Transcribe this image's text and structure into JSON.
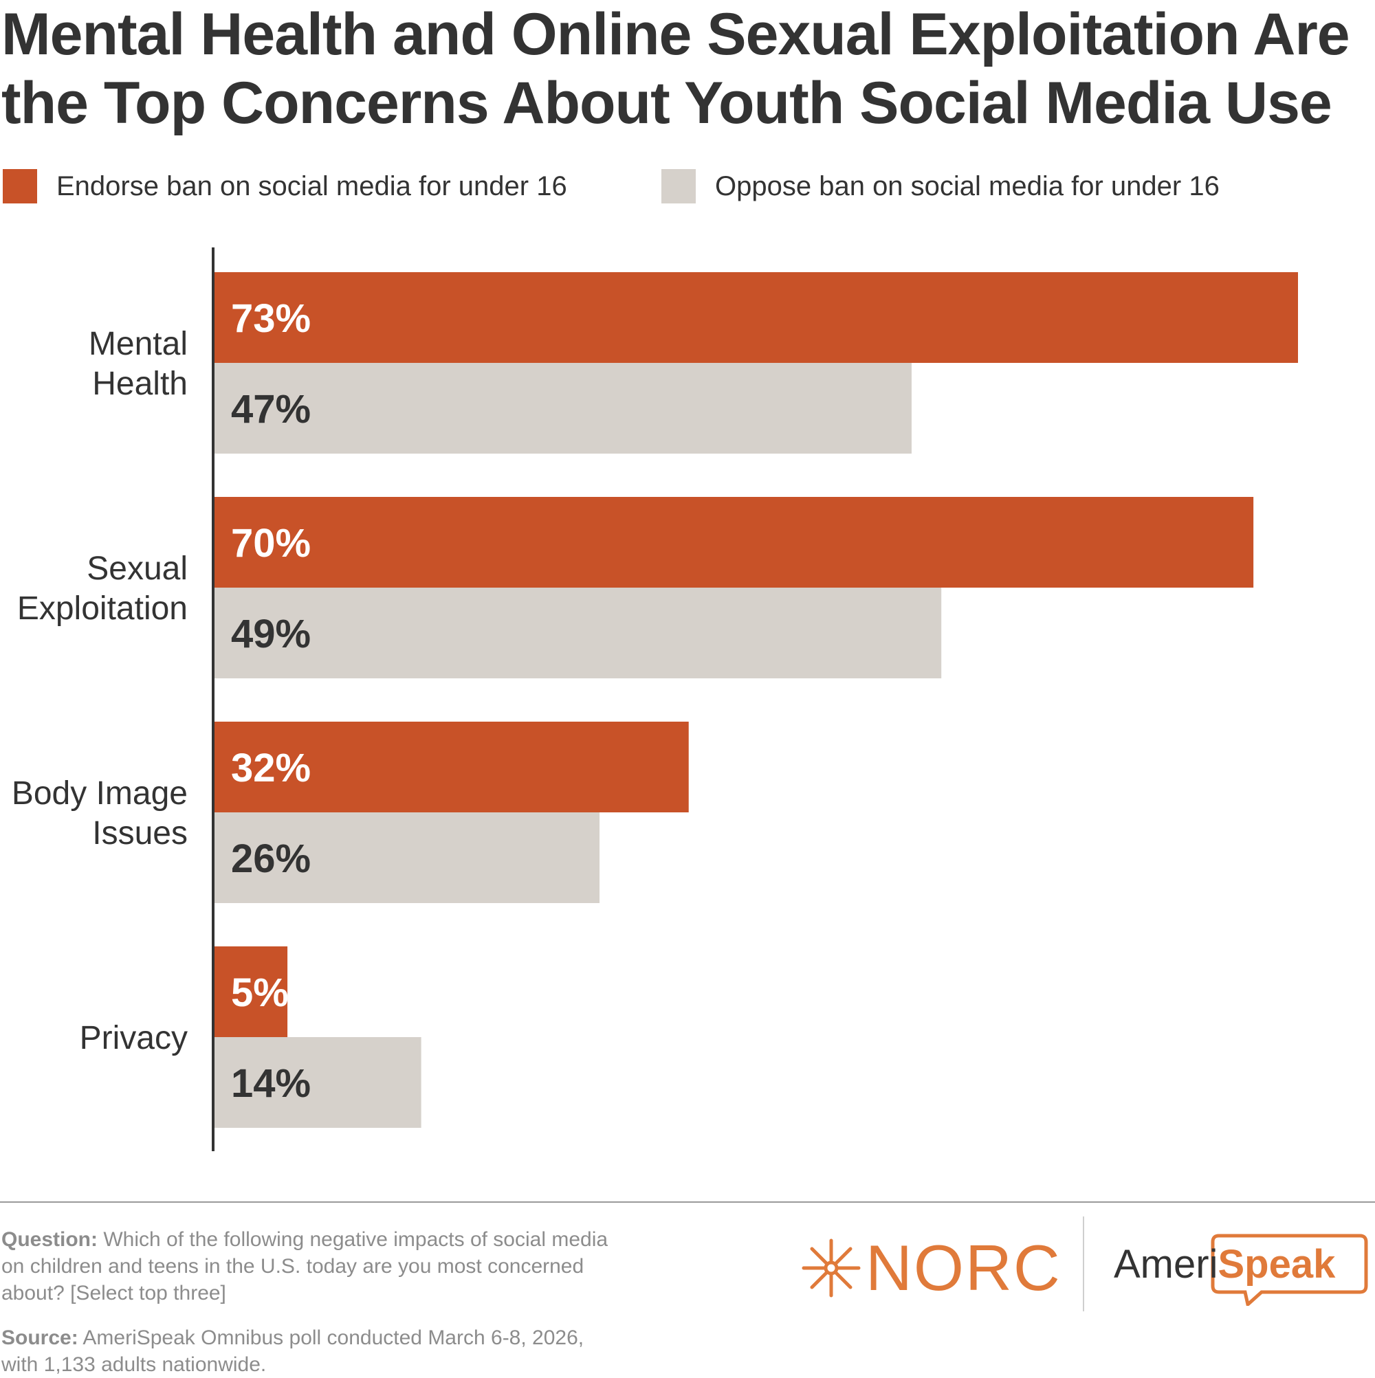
{
  "title": "Mental Health and Online Sexual Exploitation Are the Top Concerns About Youth Social Media Use",
  "colors": {
    "endorse": "#c85228",
    "oppose": "#d6d1cb",
    "axis": "#333333",
    "text": "#333333",
    "brand": "#e07a3a"
  },
  "legend": {
    "endorse": "Endorse ban on social media for under 16",
    "oppose": "Oppose ban on social media for under 16"
  },
  "chart_data": {
    "type": "bar",
    "orientation": "horizontal",
    "categories": [
      [
        "Mental",
        "Health"
      ],
      [
        "Sexual",
        "Exploitation"
      ],
      [
        "Body Image",
        "Issues"
      ],
      [
        "Privacy"
      ]
    ],
    "series": [
      {
        "name": "Endorse ban on social media for under 16",
        "values": [
          73,
          70,
          32,
          5
        ],
        "labels": [
          "73%",
          "70%",
          "32%",
          "5%"
        ]
      },
      {
        "name": "Oppose ban on social media for under 16",
        "values": [
          47,
          49,
          26,
          14
        ],
        "labels": [
          "47%",
          "49%",
          "26%",
          "14%"
        ]
      }
    ],
    "xlim": [
      0,
      73
    ],
    "grid": false,
    "legend_position": "top-left"
  },
  "footer": {
    "question_label": "Question:",
    "question_text": "Which of the following negative impacts of social media on children and teens in the U.S. today are you most concerned about? [Select top three]",
    "source_label": "Source:",
    "source_text": "AmeriSpeak Omnibus poll conducted March 6-8, 2026, with 1,133 adults nationwide."
  },
  "logos": {
    "norc": "NORC",
    "ameri": "Ameri",
    "speak": "Speak"
  }
}
